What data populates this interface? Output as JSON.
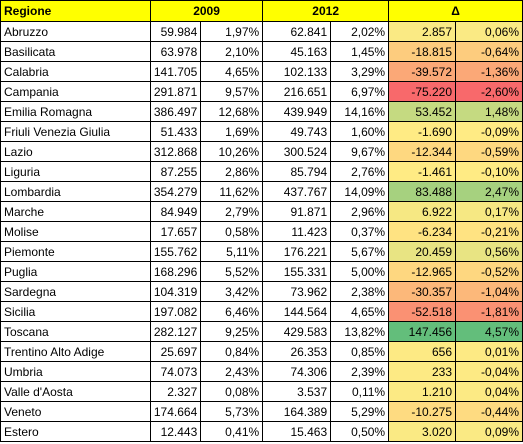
{
  "table": {
    "headers": [
      "Regione",
      "2009",
      "2012",
      "Δ"
    ],
    "rows": [
      [
        "Abruzzo",
        "59.984",
        "1,97%",
        "62.841",
        "2,02%",
        "2.857",
        "0,06%"
      ],
      [
        "Basilicata",
        "63.978",
        "2,10%",
        "45.163",
        "1,45%",
        "-18.815",
        "-0,64%"
      ],
      [
        "Calabria",
        "141.705",
        "4,65%",
        "102.133",
        "3,29%",
        "-39.572",
        "-1,36%"
      ],
      [
        "Campania",
        "291.871",
        "9,57%",
        "216.651",
        "6,97%",
        "-75.220",
        "-2,60%"
      ],
      [
        "Emilia Romagna",
        "386.497",
        "12,68%",
        "439.949",
        "14,16%",
        "53.452",
        "1,48%"
      ],
      [
        "Friuli Venezia Giulia",
        "51.433",
        "1,69%",
        "49.743",
        "1,60%",
        "-1.690",
        "-0,09%"
      ],
      [
        "Lazio",
        "312.868",
        "10,26%",
        "300.524",
        "9,67%",
        "-12.344",
        "-0,59%"
      ],
      [
        "Liguria",
        "87.255",
        "2,86%",
        "85.794",
        "2,76%",
        "-1.461",
        "-0,10%"
      ],
      [
        "Lombardia",
        "354.279",
        "11,62%",
        "437.767",
        "14,09%",
        "83.488",
        "2,47%"
      ],
      [
        "Marche",
        "84.949",
        "2,79%",
        "91.871",
        "2,96%",
        "6.922",
        "0,17%"
      ],
      [
        "Molise",
        "17.657",
        "0,58%",
        "11.423",
        "0,37%",
        "-6.234",
        "-0,21%"
      ],
      [
        "Piemonte",
        "155.762",
        "5,11%",
        "176.221",
        "5,67%",
        "20.459",
        "0,56%"
      ],
      [
        "Puglia",
        "168.296",
        "5,52%",
        "155.331",
        "5,00%",
        "-12.965",
        "-0,52%"
      ],
      [
        "Sardegna",
        "104.319",
        "3,42%",
        "73.962",
        "2,38%",
        "-30.357",
        "-1,04%"
      ],
      [
        "Sicilia",
        "197.082",
        "6,46%",
        "144.564",
        "4,65%",
        "-52.518",
        "-1,81%"
      ],
      [
        "Toscana",
        "282.127",
        "9,25%",
        "429.583",
        "13,82%",
        "147.456",
        "4,57%"
      ],
      [
        "Trentino Alto Adige",
        "25.697",
        "0,84%",
        "26.353",
        "0,85%",
        "656",
        "0,01%"
      ],
      [
        "Umbria",
        "74.073",
        "2,43%",
        "74.306",
        "2,39%",
        "233",
        "-0,04%"
      ],
      [
        "Valle d'Aosta",
        "2.327",
        "0,08%",
        "3.537",
        "0,11%",
        "1.210",
        "0,04%"
      ],
      [
        "Veneto",
        "174.664",
        "5,73%",
        "164.389",
        "5,29%",
        "-10.275",
        "-0,44%"
      ],
      [
        "Estero",
        "12.443",
        "0,41%",
        "15.463",
        "0,50%",
        "3.020",
        "0,09%"
      ]
    ]
  }
}
